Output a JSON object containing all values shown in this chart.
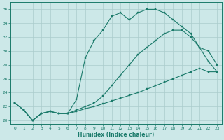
{
  "xlabel": "Humidex (Indice chaleur)",
  "bg_color": "#cce8e8",
  "grid_color": "#aacccc",
  "line_color": "#1a7a6a",
  "xlim": [
    -0.5,
    23.5
  ],
  "ylim": [
    19.5,
    37.0
  ],
  "xticks": [
    0,
    1,
    2,
    3,
    4,
    5,
    6,
    7,
    8,
    9,
    10,
    11,
    12,
    13,
    14,
    15,
    16,
    17,
    18,
    19,
    20,
    21,
    22,
    23
  ],
  "yticks": [
    20,
    22,
    24,
    26,
    28,
    30,
    32,
    34,
    36
  ],
  "line1_x": [
    0,
    1,
    2,
    3,
    4,
    5,
    6,
    7,
    8,
    9,
    10,
    11,
    12,
    13,
    14,
    15,
    16,
    17,
    18,
    19,
    20,
    21,
    22,
    23
  ],
  "line1_y": [
    22.5,
    21.5,
    20.0,
    21.0,
    21.3,
    21.0,
    21.0,
    23.0,
    29.0,
    31.5,
    33.0,
    35.0,
    35.5,
    34.5,
    35.5,
    36.0,
    36.0,
    35.5,
    34.5,
    33.5,
    32.5,
    30.5,
    28.5,
    27.0
  ],
  "line2_x": [
    0,
    1,
    2,
    3,
    4,
    5,
    6,
    7,
    8,
    9,
    10,
    11,
    12,
    13,
    14,
    15,
    16,
    17,
    18,
    19,
    20,
    21,
    22,
    23
  ],
  "line2_y": [
    22.5,
    21.5,
    20.0,
    21.0,
    21.3,
    21.0,
    21.0,
    21.5,
    22.0,
    22.5,
    23.5,
    25.0,
    26.5,
    28.0,
    29.5,
    30.5,
    31.5,
    32.5,
    33.0,
    33.0,
    32.0,
    30.5,
    30.0,
    28.0
  ],
  "line3_x": [
    0,
    1,
    2,
    3,
    4,
    5,
    6,
    7,
    8,
    9,
    10,
    11,
    12,
    13,
    14,
    15,
    16,
    17,
    18,
    19,
    20,
    21,
    22,
    23
  ],
  "line3_y": [
    22.5,
    21.5,
    20.0,
    21.0,
    21.3,
    21.0,
    21.0,
    21.3,
    21.7,
    22.0,
    22.4,
    22.8,
    23.2,
    23.6,
    24.0,
    24.5,
    25.0,
    25.5,
    26.0,
    26.5,
    27.0,
    27.5,
    27.0,
    27.0
  ]
}
